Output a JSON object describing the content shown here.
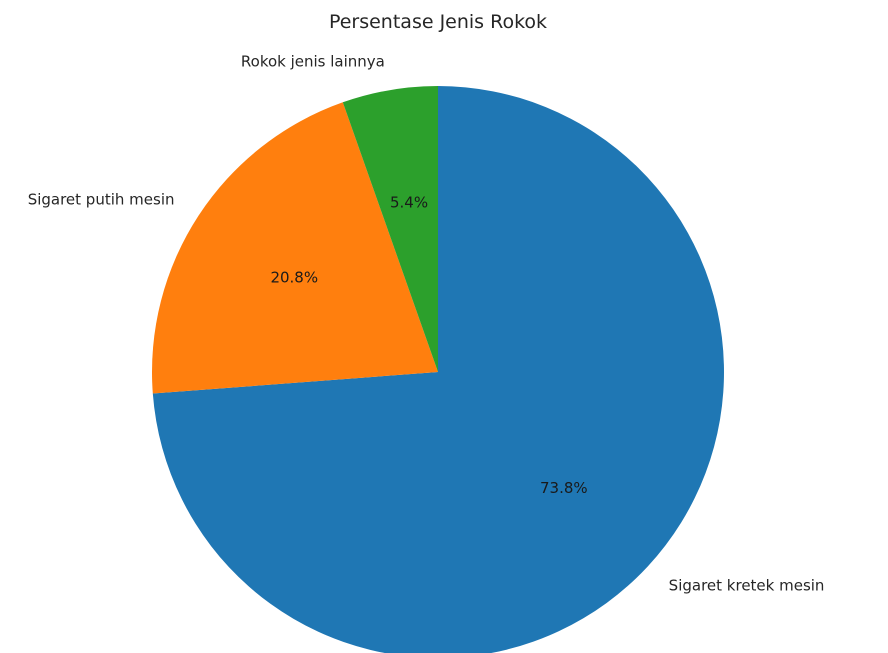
{
  "chart_data": {
    "type": "pie",
    "title": "Persentase Jenis Rokok",
    "slices": [
      {
        "label": "Sigaret kretek mesin",
        "value": 73.8,
        "pct_label": "73.8%",
        "color": "#1f77b4"
      },
      {
        "label": "Sigaret putih mesin",
        "value": 20.8,
        "pct_label": "20.8%",
        "color": "#ff7f0e"
      },
      {
        "label": "Rokok jenis lainnya",
        "value": 5.4,
        "pct_label": "5.4%",
        "color": "#2ca02c"
      }
    ],
    "start_angle_deg": 90,
    "direction": "clockwise",
    "legend": "none"
  }
}
